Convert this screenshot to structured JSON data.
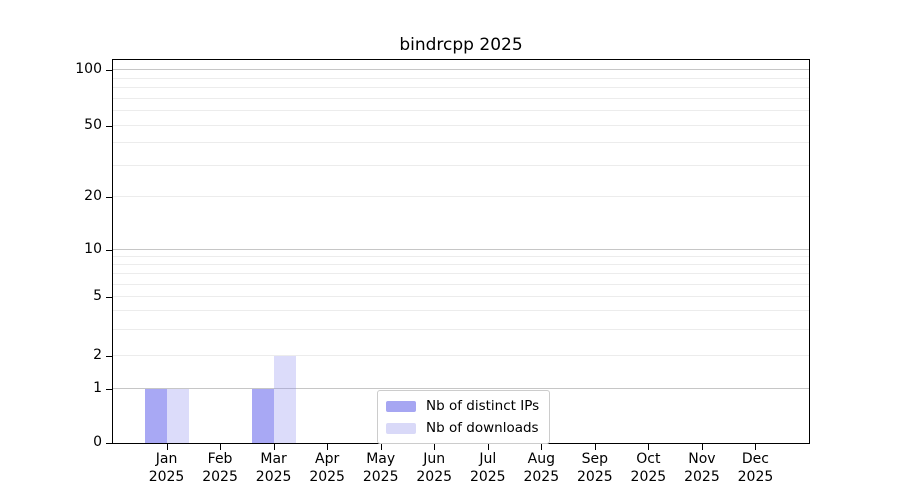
{
  "chart_data": {
    "type": "bar",
    "title": "bindrcpp 2025",
    "categories": [
      {
        "month": "Jan",
        "year": "2025"
      },
      {
        "month": "Feb",
        "year": "2025"
      },
      {
        "month": "Mar",
        "year": "2025"
      },
      {
        "month": "Apr",
        "year": "2025"
      },
      {
        "month": "May",
        "year": "2025"
      },
      {
        "month": "Jun",
        "year": "2025"
      },
      {
        "month": "Jul",
        "year": "2025"
      },
      {
        "month": "Aug",
        "year": "2025"
      },
      {
        "month": "Sep",
        "year": "2025"
      },
      {
        "month": "Oct",
        "year": "2025"
      },
      {
        "month": "Nov",
        "year": "2025"
      },
      {
        "month": "Dec",
        "year": "2025"
      }
    ],
    "series": [
      {
        "name": "Nb of distinct IPs",
        "values": [
          1,
          0,
          1,
          0,
          0,
          0,
          0,
          0,
          0,
          0,
          0,
          0
        ],
        "base_color": "#8a8af0",
        "alpha": 0.74,
        "swatch_color": "#a6a6f2"
      },
      {
        "name": "Nb of downloads",
        "values": [
          1,
          0,
          2,
          0,
          0,
          0,
          0,
          0,
          0,
          0,
          0,
          0
        ],
        "base_color": "#8a8af0",
        "alpha": 0.3,
        "swatch_color": "#d9d9f8"
      }
    ],
    "y_axis": {
      "tick_values": [
        0,
        1,
        2,
        5,
        10,
        20,
        50,
        100
      ],
      "tick_labels": [
        "0",
        "1",
        "2",
        "5",
        "10",
        "20",
        "50",
        "100"
      ],
      "strong_gridlines": [
        1,
        10,
        100
      ],
      "faint_gridlines": [
        2,
        3,
        4,
        5,
        6,
        7,
        8,
        9,
        20,
        30,
        40,
        50,
        60,
        70,
        80,
        90
      ],
      "scale": "log-like with linear segment between 0 and 1",
      "ylim": [
        0,
        120
      ],
      "grid": "on"
    },
    "legend": {
      "position": "inside bottom-center",
      "entries": [
        "Nb of distinct IPs",
        "Nb of downloads"
      ]
    },
    "colors": {
      "strong_grid": "#c6c6c6",
      "faint_grid": "#ececec",
      "spine": "#000000",
      "background": "#ffffff"
    }
  }
}
